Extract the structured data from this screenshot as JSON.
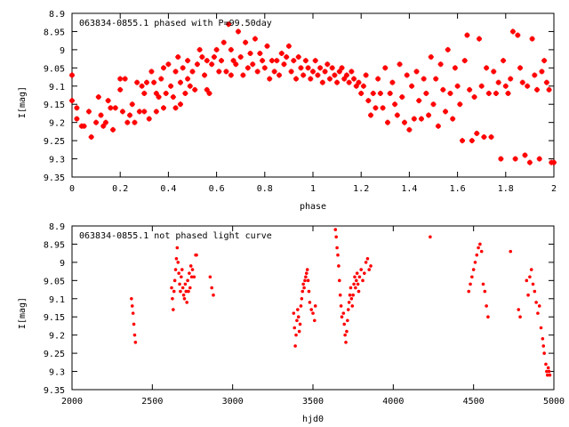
{
  "chart_data": [
    {
      "type": "scatter",
      "title": "063834-0855.1 phased with P=99.50day",
      "xlabel": "phase",
      "ylabel": "I[mag]",
      "xlim": [
        0,
        2
      ],
      "ylim": [
        9.35,
        8.9
      ],
      "xticks": [
        "0",
        "0.2",
        "0.4",
        "0.6",
        "0.8",
        "1",
        "1.2",
        "1.4",
        "1.6",
        "1.8",
        "2"
      ],
      "yticks": [
        "8.9",
        "8.95",
        "9",
        "9.05",
        "9.1",
        "9.15",
        "9.2",
        "9.25",
        "9.3",
        "9.35"
      ],
      "marker_color": "#ff0000",
      "marker": "plus",
      "points": [
        [
          0.0,
          9.07
        ],
        [
          0.0,
          9.14
        ],
        [
          0.02,
          9.16
        ],
        [
          0.02,
          9.19
        ],
        [
          0.04,
          9.21
        ],
        [
          0.05,
          9.21
        ],
        [
          0.07,
          9.17
        ],
        [
          0.08,
          9.24
        ],
        [
          0.1,
          9.2
        ],
        [
          0.11,
          9.13
        ],
        [
          0.12,
          9.18
        ],
        [
          0.13,
          9.21
        ],
        [
          0.14,
          9.2
        ],
        [
          0.15,
          9.14
        ],
        [
          0.16,
          9.16
        ],
        [
          0.17,
          9.22
        ],
        [
          0.18,
          9.16
        ],
        [
          0.2,
          9.11
        ],
        [
          0.2,
          9.08
        ],
        [
          0.21,
          9.17
        ],
        [
          0.22,
          9.08
        ],
        [
          0.23,
          9.2
        ],
        [
          0.24,
          9.18
        ],
        [
          0.25,
          9.15
        ],
        [
          0.26,
          9.2
        ],
        [
          0.27,
          9.09
        ],
        [
          0.28,
          9.17
        ],
        [
          0.29,
          9.1
        ],
        [
          0.3,
          9.12
        ],
        [
          0.3,
          9.17
        ],
        [
          0.31,
          9.09
        ],
        [
          0.32,
          9.19
        ],
        [
          0.33,
          9.06
        ],
        [
          0.34,
          9.09
        ],
        [
          0.35,
          9.12
        ],
        [
          0.35,
          9.17
        ],
        [
          0.36,
          9.13
        ],
        [
          0.37,
          9.08
        ],
        [
          0.38,
          9.16
        ],
        [
          0.38,
          9.05
        ],
        [
          0.39,
          9.12
        ],
        [
          0.4,
          9.04
        ],
        [
          0.41,
          9.1
        ],
        [
          0.42,
          9.13
        ],
        [
          0.43,
          9.06
        ],
        [
          0.43,
          9.16
        ],
        [
          0.44,
          9.02
        ],
        [
          0.45,
          9.09
        ],
        [
          0.45,
          9.15
        ],
        [
          0.46,
          9.05
        ],
        [
          0.47,
          9.12
        ],
        [
          0.48,
          9.08
        ],
        [
          0.48,
          9.03
        ],
        [
          0.49,
          9.1
        ],
        [
          0.5,
          9.06
        ],
        [
          0.51,
          9.11
        ],
        [
          0.52,
          9.04
        ],
        [
          0.53,
          9.0
        ],
        [
          0.54,
          9.02
        ],
        [
          0.55,
          9.07
        ],
        [
          0.56,
          9.11
        ],
        [
          0.56,
          9.03
        ],
        [
          0.57,
          9.12
        ],
        [
          0.58,
          9.04
        ],
        [
          0.59,
          9.02
        ],
        [
          0.6,
          9.0
        ],
        [
          0.61,
          9.06
        ],
        [
          0.62,
          9.03
        ],
        [
          0.63,
          8.98
        ],
        [
          0.64,
          9.06
        ],
        [
          0.65,
          8.93
        ],
        [
          0.66,
          9.0
        ],
        [
          0.66,
          9.07
        ],
        [
          0.67,
          9.03
        ],
        [
          0.68,
          9.04
        ],
        [
          0.69,
          8.95
        ],
        [
          0.7,
          9.02
        ],
        [
          0.71,
          9.07
        ],
        [
          0.72,
          8.98
        ],
        [
          0.73,
          9.05
        ],
        [
          0.74,
          9.01
        ],
        [
          0.75,
          9.04
        ],
        [
          0.76,
          8.97
        ],
        [
          0.77,
          9.06
        ],
        [
          0.78,
          9.01
        ],
        [
          0.79,
          9.03
        ],
        [
          0.8,
          9.05
        ],
        [
          0.81,
          8.99
        ],
        [
          0.82,
          9.08
        ],
        [
          0.83,
          9.03
        ],
        [
          0.84,
          9.06
        ],
        [
          0.85,
          9.03
        ],
        [
          0.86,
          9.07
        ],
        [
          0.87,
          9.01
        ],
        [
          0.88,
          9.04
        ],
        [
          0.89,
          9.02
        ],
        [
          0.9,
          8.99
        ],
        [
          0.91,
          9.06
        ],
        [
          0.92,
          9.03
        ],
        [
          0.93,
          9.08
        ],
        [
          0.94,
          9.02
        ],
        [
          0.95,
          9.05
        ],
        [
          0.96,
          9.07
        ],
        [
          0.97,
          9.03
        ],
        [
          0.98,
          9.05
        ],
        [
          0.99,
          9.08
        ],
        [
          1.0,
          9.06
        ],
        [
          1.01,
          9.03
        ],
        [
          1.02,
          9.07
        ],
        [
          1.03,
          9.05
        ],
        [
          1.04,
          9.09
        ],
        [
          1.05,
          9.06
        ],
        [
          1.06,
          9.04
        ],
        [
          1.07,
          9.08
        ],
        [
          1.08,
          9.05
        ],
        [
          1.09,
          9.07
        ],
        [
          1.1,
          9.09
        ],
        [
          1.11,
          9.06
        ],
        [
          1.12,
          9.05
        ],
        [
          1.13,
          9.08
        ],
        [
          1.14,
          9.07
        ],
        [
          1.15,
          9.09
        ],
        [
          1.16,
          9.06
        ],
        [
          1.17,
          9.08
        ],
        [
          1.18,
          9.1
        ],
        [
          1.19,
          9.09
        ],
        [
          1.2,
          9.12
        ],
        [
          1.21,
          9.1
        ],
        [
          1.22,
          9.07
        ],
        [
          1.23,
          9.14
        ],
        [
          1.24,
          9.18
        ],
        [
          1.25,
          9.12
        ],
        [
          1.26,
          9.16
        ],
        [
          1.27,
          9.08
        ],
        [
          1.28,
          9.12
        ],
        [
          1.29,
          9.16
        ],
        [
          1.3,
          9.05
        ],
        [
          1.31,
          9.2
        ],
        [
          1.32,
          9.12
        ],
        [
          1.33,
          9.09
        ],
        [
          1.34,
          9.15
        ],
        [
          1.35,
          9.18
        ],
        [
          1.36,
          9.04
        ],
        [
          1.37,
          9.13
        ],
        [
          1.38,
          9.2
        ],
        [
          1.39,
          9.07
        ],
        [
          1.4,
          9.22
        ],
        [
          1.41,
          9.1
        ],
        [
          1.42,
          9.19
        ],
        [
          1.43,
          9.06
        ],
        [
          1.44,
          9.14
        ],
        [
          1.45,
          9.19
        ],
        [
          1.46,
          9.08
        ],
        [
          1.47,
          9.12
        ],
        [
          1.48,
          9.18
        ],
        [
          1.49,
          9.02
        ],
        [
          1.5,
          9.15
        ],
        [
          1.51,
          9.08
        ],
        [
          1.52,
          9.21
        ],
        [
          1.53,
          9.04
        ],
        [
          1.54,
          9.11
        ],
        [
          1.55,
          9.17
        ],
        [
          1.56,
          9.0
        ],
        [
          1.57,
          9.12
        ],
        [
          1.58,
          9.19
        ],
        [
          1.59,
          9.05
        ],
        [
          1.6,
          9.1
        ],
        [
          1.61,
          9.15
        ],
        [
          1.62,
          9.25
        ],
        [
          1.63,
          9.03
        ],
        [
          1.64,
          8.96
        ],
        [
          1.65,
          9.11
        ],
        [
          1.66,
          9.25
        ],
        [
          1.67,
          9.13
        ],
        [
          1.68,
          9.23
        ],
        [
          1.69,
          8.97
        ],
        [
          1.7,
          9.1
        ],
        [
          1.71,
          9.24
        ],
        [
          1.72,
          9.05
        ],
        [
          1.73,
          9.12
        ],
        [
          1.74,
          9.24
        ],
        [
          1.75,
          9.06
        ],
        [
          1.76,
          9.12
        ],
        [
          1.77,
          9.09
        ],
        [
          1.78,
          9.3
        ],
        [
          1.79,
          9.03
        ],
        [
          1.8,
          9.1
        ],
        [
          1.81,
          9.12
        ],
        [
          1.82,
          9.08
        ],
        [
          1.83,
          8.95
        ],
        [
          1.84,
          9.3
        ],
        [
          1.85,
          8.96
        ],
        [
          1.86,
          9.05
        ],
        [
          1.87,
          9.09
        ],
        [
          1.88,
          9.29
        ],
        [
          1.89,
          9.1
        ],
        [
          1.9,
          9.31
        ],
        [
          1.91,
          8.97
        ],
        [
          1.92,
          9.07
        ],
        [
          1.93,
          9.11
        ],
        [
          1.94,
          9.3
        ],
        [
          1.95,
          9.06
        ],
        [
          1.96,
          9.03
        ],
        [
          1.97,
          9.09
        ],
        [
          1.98,
          9.11
        ],
        [
          1.99,
          9.31
        ],
        [
          2.0,
          9.31
        ]
      ]
    },
    {
      "type": "scatter",
      "title": "063834-0855.1 not phased light curve",
      "xlabel": "hjd0",
      "ylabel": "I[mag]",
      "xlim": [
        2000,
        5000
      ],
      "ylim": [
        9.35,
        8.9
      ],
      "xticks": [
        "2000",
        "2500",
        "3000",
        "3500",
        "4000",
        "4500",
        "5000"
      ],
      "yticks": [
        "8.9",
        "8.95",
        "9",
        "9.05",
        "9.1",
        "9.15",
        "9.2",
        "9.25",
        "9.3",
        "9.35"
      ],
      "marker_color": "#ff0000",
      "marker": "dot",
      "points": [
        [
          2370,
          9.1
        ],
        [
          2375,
          9.12
        ],
        [
          2380,
          9.14
        ],
        [
          2385,
          9.17
        ],
        [
          2390,
          9.2
        ],
        [
          2395,
          9.22
        ],
        [
          2620,
          9.07
        ],
        [
          2625,
          9.1
        ],
        [
          2630,
          9.13
        ],
        [
          2635,
          9.08
        ],
        [
          2640,
          9.05
        ],
        [
          2645,
          9.02
        ],
        [
          2650,
          8.99
        ],
        [
          2655,
          8.96
        ],
        [
          2660,
          9.0
        ],
        [
          2665,
          9.03
        ],
        [
          2670,
          9.06
        ],
        [
          2675,
          9.08
        ],
        [
          2680,
          9.04
        ],
        [
          2685,
          9.02
        ],
        [
          2690,
          9.07
        ],
        [
          2695,
          9.09
        ],
        [
          2700,
          9.1
        ],
        [
          2705,
          9.06
        ],
        [
          2710,
          9.08
        ],
        [
          2715,
          9.11
        ],
        [
          2720,
          9.05
        ],
        [
          2725,
          9.08
        ],
        [
          2730,
          9.03
        ],
        [
          2735,
          9.07
        ],
        [
          2740,
          9.01
        ],
        [
          2745,
          9.04
        ],
        [
          2750,
          9.02
        ],
        [
          2760,
          9.04
        ],
        [
          2770,
          8.98
        ],
        [
          2775,
          8.98
        ],
        [
          2860,
          9.04
        ],
        [
          2870,
          9.07
        ],
        [
          2880,
          9.09
        ],
        [
          3380,
          9.14
        ],
        [
          3385,
          9.18
        ],
        [
          3390,
          9.23
        ],
        [
          3395,
          9.2
        ],
        [
          3400,
          9.16
        ],
        [
          3405,
          9.13
        ],
        [
          3410,
          9.15
        ],
        [
          3415,
          9.19
        ],
        [
          3420,
          9.17
        ],
        [
          3425,
          9.12
        ],
        [
          3430,
          9.1
        ],
        [
          3435,
          9.08
        ],
        [
          3440,
          9.06
        ],
        [
          3445,
          9.07
        ],
        [
          3450,
          9.05
        ],
        [
          3455,
          9.04
        ],
        [
          3460,
          9.03
        ],
        [
          3465,
          9.02
        ],
        [
          3470,
          9.05
        ],
        [
          3475,
          9.08
        ],
        [
          3480,
          9.11
        ],
        [
          3490,
          9.13
        ],
        [
          3500,
          9.14
        ],
        [
          3510,
          9.16
        ],
        [
          3515,
          9.12
        ],
        [
          3640,
          8.91
        ],
        [
          3645,
          8.93
        ],
        [
          3650,
          8.96
        ],
        [
          3655,
          8.98
        ],
        [
          3660,
          9.01
        ],
        [
          3665,
          9.05
        ],
        [
          3670,
          9.09
        ],
        [
          3675,
          9.12
        ],
        [
          3680,
          9.15
        ],
        [
          3690,
          9.14
        ],
        [
          3695,
          9.17
        ],
        [
          3700,
          9.2
        ],
        [
          3705,
          9.22
        ],
        [
          3710,
          9.19
        ],
        [
          3715,
          9.16
        ],
        [
          3720,
          9.13
        ],
        [
          3725,
          9.11
        ],
        [
          3730,
          9.09
        ],
        [
          3735,
          9.07
        ],
        [
          3740,
          9.1
        ],
        [
          3745,
          9.12
        ],
        [
          3750,
          9.09
        ],
        [
          3755,
          9.06
        ],
        [
          3760,
          9.04
        ],
        [
          3765,
          9.07
        ],
        [
          3770,
          9.05
        ],
        [
          3775,
          9.03
        ],
        [
          3780,
          9.06
        ],
        [
          3785,
          9.08
        ],
        [
          3790,
          9.04
        ],
        [
          3800,
          9.02
        ],
        [
          3810,
          9.05
        ],
        [
          3820,
          9.03
        ],
        [
          3830,
          9.0
        ],
        [
          3840,
          8.99
        ],
        [
          3850,
          9.02
        ],
        [
          3860,
          9.01
        ],
        [
          4230,
          8.93
        ],
        [
          4470,
          9.08
        ],
        [
          4480,
          9.06
        ],
        [
          4490,
          9.04
        ],
        [
          4500,
          9.02
        ],
        [
          4510,
          9.0
        ],
        [
          4520,
          8.98
        ],
        [
          4530,
          8.96
        ],
        [
          4540,
          8.95
        ],
        [
          4550,
          8.97
        ],
        [
          4560,
          9.06
        ],
        [
          4570,
          9.08
        ],
        [
          4580,
          9.12
        ],
        [
          4590,
          9.15
        ],
        [
          4730,
          8.97
        ],
        [
          4780,
          9.13
        ],
        [
          4790,
          9.15
        ],
        [
          4830,
          9.05
        ],
        [
          4840,
          9.09
        ],
        [
          4850,
          9.04
        ],
        [
          4860,
          9.02
        ],
        [
          4870,
          9.06
        ],
        [
          4880,
          9.08
        ],
        [
          4890,
          9.11
        ],
        [
          4900,
          9.14
        ],
        [
          4910,
          9.12
        ],
        [
          4920,
          9.18
        ],
        [
          4930,
          9.21
        ],
        [
          4935,
          9.23
        ],
        [
          4940,
          9.25
        ],
        [
          4950,
          9.28
        ],
        [
          4955,
          9.3
        ],
        [
          4960,
          9.31
        ],
        [
          4965,
          9.29
        ],
        [
          4970,
          9.3
        ],
        [
          4975,
          9.31
        ]
      ]
    }
  ]
}
